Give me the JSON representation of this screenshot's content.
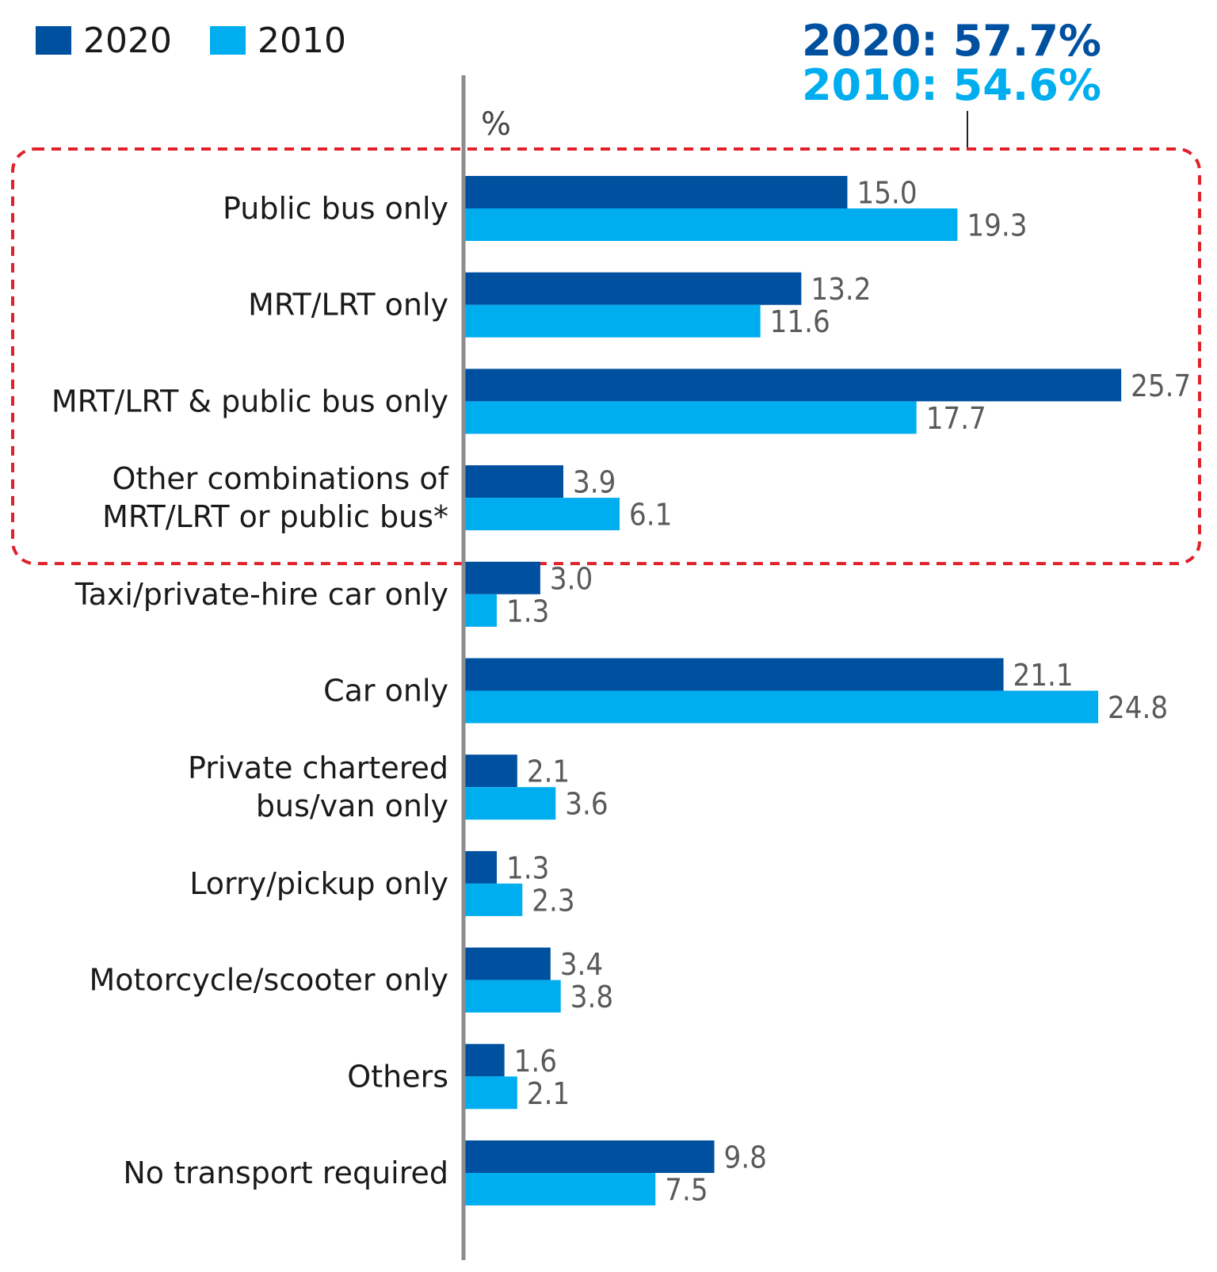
{
  "chart_data": {
    "type": "bar",
    "orientation": "horizontal",
    "unit_label": "%",
    "categories": [
      [
        "Public bus only"
      ],
      [
        "MRT/LRT only"
      ],
      [
        "MRT/LRT & public bus only"
      ],
      [
        "Other combinations of",
        "MRT/LRT or public bus*"
      ],
      [
        "Taxi/private-hire car only"
      ],
      [
        "Car only"
      ],
      [
        "Private chartered",
        "bus/van only"
      ],
      [
        "Lorry/pickup only"
      ],
      [
        "Motorcycle/scooter only"
      ],
      [
        "Others"
      ],
      [
        "No transport required"
      ]
    ],
    "series": [
      {
        "name": "2020",
        "color": "#0050a0",
        "values": [
          15.0,
          13.2,
          25.7,
          3.9,
          3.0,
          21.1,
          2.1,
          1.3,
          3.4,
          1.6,
          9.8
        ]
      },
      {
        "name": "2010",
        "color": "#00aeef",
        "values": [
          19.3,
          11.6,
          17.7,
          6.1,
          1.3,
          24.8,
          3.6,
          2.3,
          3.8,
          2.1,
          7.5
        ]
      }
    ],
    "value_labels": {
      "2020": [
        "15.0",
        "13.2",
        "25.7",
        "3.9",
        "3.0",
        "21.1",
        "2.1",
        "1.3",
        "3.4",
        "1.6",
        "9.8"
      ],
      "2010": [
        "19.3",
        "11.6",
        "17.7",
        "6.1",
        "1.3",
        "24.8",
        "3.6",
        "2.3",
        "3.8",
        "2.1",
        "7.5"
      ]
    },
    "highlight_group": {
      "categories_index": [
        0,
        1,
        2,
        3
      ],
      "border_color": "#e0202a",
      "totals": [
        {
          "text": "2020: 57.7%",
          "color": "#0050a0"
        },
        {
          "text": "2010: 54.6%",
          "color": "#00aeef"
        }
      ]
    },
    "legend": {
      "placement": "top-left",
      "entries": [
        "2020",
        "2010"
      ]
    },
    "grid": false
  }
}
